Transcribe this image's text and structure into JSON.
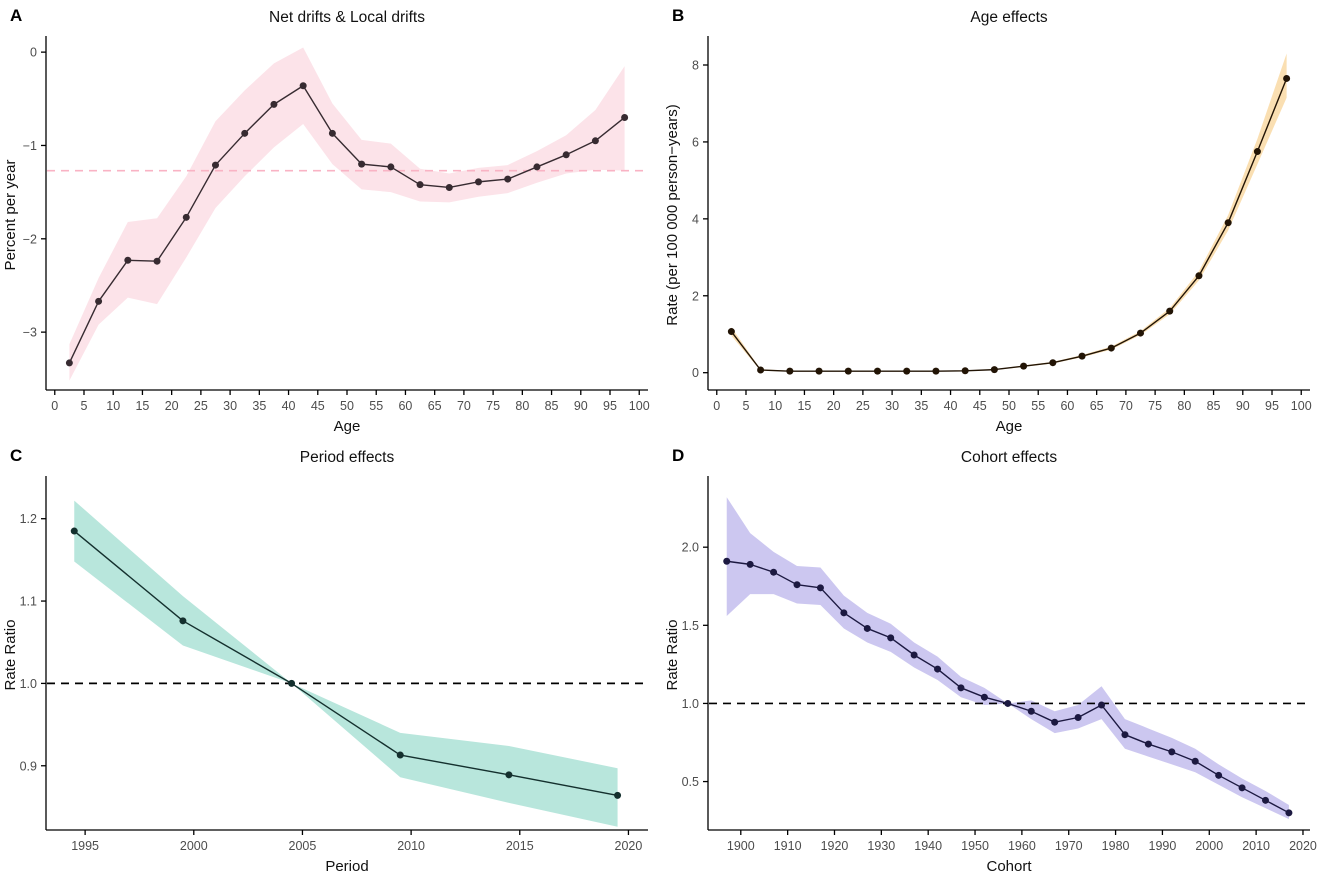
{
  "figure": {
    "background": "#ffffff",
    "axis_color": "#000000",
    "tick_text_color": "#4d4d4d",
    "label_text_color": "#111111"
  },
  "chart_data": [
    {
      "type": "line",
      "panel_label": "A",
      "title": "Net drifts & Local drifts",
      "xlabel": "Age",
      "ylabel": "Percent per year",
      "legend_position": "none",
      "grid": false,
      "xlim": [
        -1.5,
        101.5
      ],
      "ylim": [
        -3.62,
        0.13
      ],
      "xticks": [
        0,
        5,
        10,
        15,
        20,
        25,
        30,
        35,
        40,
        45,
        50,
        55,
        60,
        65,
        70,
        75,
        80,
        85,
        90,
        95,
        100
      ],
      "xtick_labels": [
        "0",
        "5",
        "10",
        "15",
        "20",
        "25",
        "30",
        "35",
        "40",
        "45",
        "50",
        "55",
        "60",
        "65",
        "70",
        "75",
        "80",
        "85",
        "90",
        "95",
        "100"
      ],
      "yticks": [
        0,
        -1,
        -2,
        -3
      ],
      "ytick_labels": [
        "0",
        "−1",
        "−2",
        "−3"
      ],
      "band_color": "#fce3e9",
      "line_color": "#372b31",
      "point_color": "#372b31",
      "ref_line": {
        "y": -1.27,
        "color": "#f9b3c4"
      },
      "x": [
        2.5,
        7.5,
        12.5,
        17.5,
        22.5,
        27.5,
        32.5,
        37.5,
        42.5,
        47.5,
        52.5,
        57.5,
        62.5,
        67.5,
        72.5,
        77.5,
        82.5,
        87.5,
        92.5,
        97.5
      ],
      "y": [
        -3.33,
        -2.67,
        -2.23,
        -2.24,
        -1.77,
        -1.21,
        -0.87,
        -0.56,
        -0.36,
        -0.87,
        -1.2,
        -1.23,
        -1.42,
        -1.45,
        -1.39,
        -1.36,
        -1.23,
        -1.1,
        -0.95,
        -0.7
      ],
      "lower": [
        -3.52,
        -2.92,
        -2.63,
        -2.7,
        -2.2,
        -1.67,
        -1.33,
        -1.02,
        -0.77,
        -1.2,
        -1.47,
        -1.5,
        -1.6,
        -1.61,
        -1.55,
        -1.51,
        -1.4,
        -1.3,
        -1.26,
        -1.27
      ],
      "upper": [
        -3.13,
        -2.42,
        -1.82,
        -1.78,
        -1.33,
        -0.74,
        -0.41,
        -0.12,
        0.05,
        -0.55,
        -0.94,
        -0.98,
        -1.25,
        -1.3,
        -1.24,
        -1.21,
        -1.06,
        -0.89,
        -0.62,
        -0.15
      ]
    },
    {
      "type": "line",
      "panel_label": "B",
      "title": "Age effects",
      "xlabel": "Age",
      "ylabel": "Rate (per 100 000 person−years)",
      "legend_position": "none",
      "grid": false,
      "xlim": [
        -1.5,
        101.5
      ],
      "ylim": [
        -0.45,
        8.65
      ],
      "xticks": [
        0,
        5,
        10,
        15,
        20,
        25,
        30,
        35,
        40,
        45,
        50,
        55,
        60,
        65,
        70,
        75,
        80,
        85,
        90,
        95,
        100
      ],
      "xtick_labels": [
        "0",
        "5",
        "10",
        "15",
        "20",
        "25",
        "30",
        "35",
        "40",
        "45",
        "50",
        "55",
        "60",
        "65",
        "70",
        "75",
        "80",
        "85",
        "90",
        "95",
        "100"
      ],
      "yticks": [
        0,
        2,
        4,
        6,
        8
      ],
      "ytick_labels": [
        "0",
        "2",
        "4",
        "6",
        "8"
      ],
      "band_color": "#fadfb2",
      "line_color": "#221405",
      "point_color": "#221405",
      "ref_line": null,
      "x": [
        2.5,
        7.5,
        12.5,
        17.5,
        22.5,
        27.5,
        32.5,
        37.5,
        42.5,
        47.5,
        52.5,
        57.5,
        62.5,
        67.5,
        72.5,
        77.5,
        82.5,
        87.5,
        92.5,
        97.5
      ],
      "y": [
        1.07,
        0.07,
        0.04,
        0.04,
        0.04,
        0.04,
        0.04,
        0.04,
        0.05,
        0.08,
        0.17,
        0.26,
        0.43,
        0.64,
        1.03,
        1.6,
        2.52,
        3.9,
        5.75,
        7.65
      ],
      "lower": [
        0.96,
        0.05,
        0.03,
        0.03,
        0.03,
        0.03,
        0.03,
        0.03,
        0.04,
        0.07,
        0.15,
        0.24,
        0.4,
        0.6,
        0.98,
        1.52,
        2.4,
        3.7,
        5.42,
        7.15
      ],
      "upper": [
        1.18,
        0.09,
        0.05,
        0.05,
        0.05,
        0.05,
        0.05,
        0.05,
        0.06,
        0.09,
        0.19,
        0.28,
        0.46,
        0.68,
        1.08,
        1.68,
        2.64,
        4.1,
        6.08,
        8.3
      ]
    },
    {
      "type": "line",
      "panel_label": "C",
      "title": "Period effects",
      "xlabel": "Period",
      "ylabel": "Rate Ratio",
      "legend_position": "none",
      "grid": false,
      "xlim": [
        1993.2,
        2020.9
      ],
      "ylim": [
        0.822,
        1.247
      ],
      "xticks": [
        1995,
        2000,
        2005,
        2010,
        2015,
        2020
      ],
      "xtick_labels": [
        "1995",
        "2000",
        "2005",
        "2010",
        "2015",
        "2020"
      ],
      "yticks": [
        0.9,
        1.0,
        1.1,
        1.2
      ],
      "ytick_labels": [
        "0.9",
        "1.0",
        "1.1",
        "1.2"
      ],
      "band_color": "#b8e6dc",
      "line_color": "#14302e",
      "point_color": "#14302e",
      "ref_line": {
        "y": 1.0,
        "color": "#000000"
      },
      "x": [
        1994.5,
        1999.5,
        2004.5,
        2009.5,
        2014.5,
        2019.5
      ],
      "y": [
        1.185,
        1.076,
        1.0,
        0.913,
        0.889,
        0.864
      ],
      "lower": [
        1.148,
        1.046,
        1.0,
        0.886,
        0.855,
        0.826
      ],
      "upper": [
        1.222,
        1.106,
        1.0,
        0.94,
        0.924,
        0.897
      ]
    },
    {
      "type": "line",
      "panel_label": "D",
      "title": "Cohort effects",
      "xlabel": "Cohort",
      "ylabel": "Rate Ratio",
      "legend_position": "none",
      "grid": false,
      "xlim": [
        1893,
        2021.5
      ],
      "ylim": [
        0.19,
        2.43
      ],
      "xticks": [
        1900,
        1910,
        1920,
        1930,
        1940,
        1950,
        1960,
        1970,
        1980,
        1990,
        2000,
        2010,
        2020
      ],
      "xtick_labels": [
        "1900",
        "1910",
        "1920",
        "1930",
        "1940",
        "1950",
        "1960",
        "1970",
        "1980",
        "1990",
        "2000",
        "2010",
        "2020"
      ],
      "yticks": [
        0.5,
        1.0,
        1.5,
        2.0
      ],
      "ytick_labels": [
        "0.5",
        "1.0",
        "1.5",
        "2.0"
      ],
      "band_color": "#ccc7f0",
      "line_color": "#1c1941",
      "point_color": "#1c1941",
      "ref_line": {
        "y": 1.0,
        "color": "#000000"
      },
      "x": [
        1897,
        1902,
        1907,
        1912,
        1917,
        1922,
        1927,
        1932,
        1937,
        1942,
        1947,
        1952,
        1957,
        1962,
        1967,
        1972,
        1977,
        1982,
        1987,
        1992,
        1997,
        2002,
        2007,
        2012,
        2017
      ],
      "y": [
        1.91,
        1.89,
        1.84,
        1.76,
        1.74,
        1.58,
        1.48,
        1.42,
        1.31,
        1.22,
        1.1,
        1.04,
        1.0,
        0.95,
        0.88,
        0.91,
        0.99,
        0.8,
        0.74,
        0.69,
        0.63,
        0.54,
        0.46,
        0.38,
        0.3
      ],
      "lower": [
        1.56,
        1.7,
        1.7,
        1.64,
        1.63,
        1.48,
        1.39,
        1.33,
        1.23,
        1.15,
        1.04,
        0.99,
        1.0,
        0.9,
        0.81,
        0.84,
        0.9,
        0.71,
        0.66,
        0.61,
        0.56,
        0.48,
        0.4,
        0.33,
        0.26
      ],
      "upper": [
        2.32,
        2.09,
        1.97,
        1.88,
        1.87,
        1.69,
        1.58,
        1.51,
        1.39,
        1.3,
        1.17,
        1.1,
        1.0,
        1.02,
        0.95,
        0.99,
        1.11,
        0.9,
        0.84,
        0.78,
        0.71,
        0.61,
        0.52,
        0.44,
        0.35
      ]
    }
  ]
}
